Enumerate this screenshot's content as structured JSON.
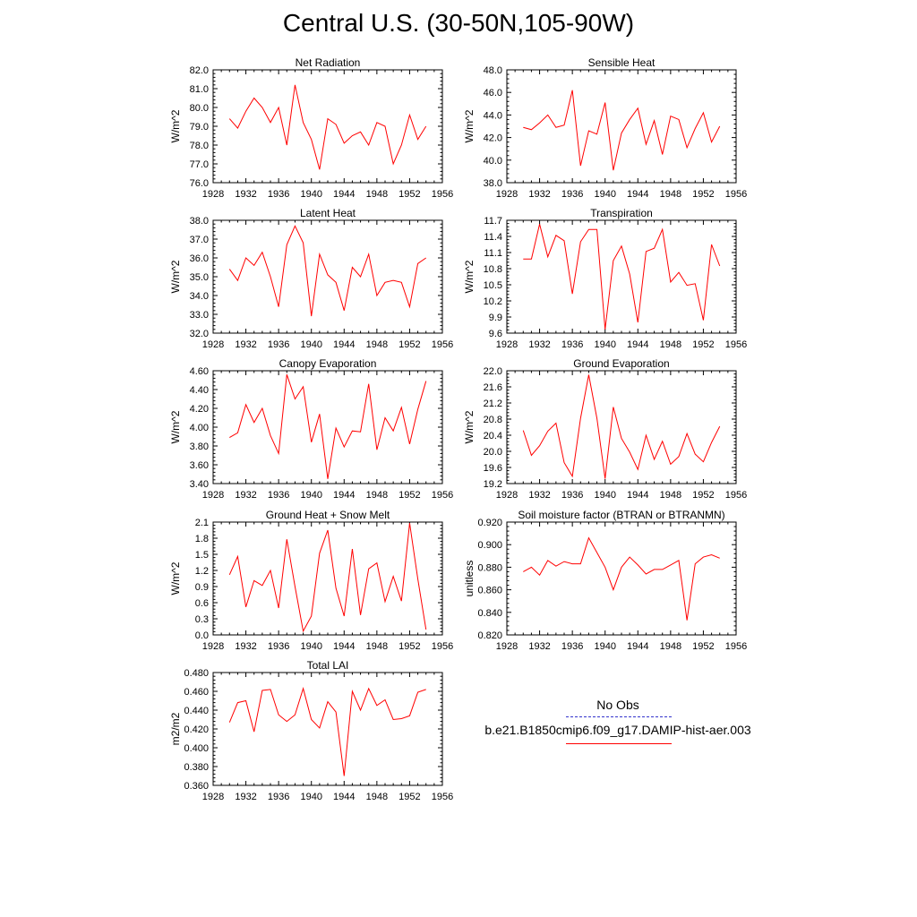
{
  "title": "Central U.S. (30-50N,105-90W)",
  "colors": {
    "model": "#ff0000",
    "obs": "#3333cc",
    "axis": "#000000"
  },
  "legend": {
    "obs_label": "No Obs",
    "model_label": "b.e21.B1850cmip6.f09_g17.DAMIP-hist-aer.003"
  },
  "chart_data": [
    {
      "type": "line",
      "title": "Net Radiation",
      "ylabel": "W/m^2",
      "xlim": [
        1928,
        1956
      ],
      "ylim": [
        76.0,
        82.0
      ],
      "xticks": [
        1928,
        1932,
        1936,
        1940,
        1944,
        1948,
        1952,
        1956
      ],
      "yticks": [
        "76.0",
        "77.0",
        "78.0",
        "79.0",
        "80.0",
        "81.0",
        "82.0"
      ],
      "series": [
        {
          "x": [
            1930,
            1931,
            1932,
            1933,
            1934,
            1935,
            1936,
            1937,
            1938,
            1939,
            1940,
            1941,
            1942,
            1943,
            1944,
            1945,
            1946,
            1947,
            1948,
            1949,
            1950,
            1951,
            1952,
            1953,
            1954
          ],
          "values": [
            79.4,
            78.9,
            79.8,
            80.5,
            80.0,
            79.2,
            80.0,
            78.0,
            81.2,
            79.2,
            78.3,
            76.7,
            79.4,
            79.1,
            78.1,
            78.5,
            78.7,
            78.0,
            79.2,
            79.0,
            77.0,
            78.0,
            79.6,
            78.3,
            79.0
          ]
        }
      ]
    },
    {
      "type": "line",
      "title": "Sensible Heat",
      "ylabel": "W/m^2",
      "xlim": [
        1928,
        1956
      ],
      "ylim": [
        38.0,
        48.0
      ],
      "xticks": [
        1928,
        1932,
        1936,
        1940,
        1944,
        1948,
        1952,
        1956
      ],
      "yticks": [
        "38.0",
        "40.0",
        "42.0",
        "44.0",
        "46.0",
        "48.0"
      ],
      "series": [
        {
          "x": [
            1930,
            1931,
            1932,
            1933,
            1934,
            1935,
            1936,
            1937,
            1938,
            1939,
            1940,
            1941,
            1942,
            1943,
            1944,
            1945,
            1946,
            1947,
            1948,
            1949,
            1950,
            1951,
            1952,
            1953,
            1954
          ],
          "values": [
            42.9,
            42.7,
            43.3,
            44.0,
            42.9,
            43.1,
            46.2,
            39.5,
            42.6,
            42.3,
            45.1,
            39.1,
            42.4,
            43.6,
            44.6,
            41.4,
            43.5,
            40.5,
            43.9,
            43.6,
            41.1,
            42.8,
            44.2,
            41.6,
            43.0
          ]
        }
      ]
    },
    {
      "type": "line",
      "title": "Latent Heat",
      "ylabel": "W/m^2",
      "xlim": [
        1928,
        1956
      ],
      "ylim": [
        32.0,
        38.0
      ],
      "xticks": [
        1928,
        1932,
        1936,
        1940,
        1944,
        1948,
        1952,
        1956
      ],
      "yticks": [
        "32.0",
        "33.0",
        "34.0",
        "35.0",
        "36.0",
        "37.0",
        "38.0"
      ],
      "series": [
        {
          "x": [
            1930,
            1931,
            1932,
            1933,
            1934,
            1935,
            1936,
            1937,
            1938,
            1939,
            1940,
            1941,
            1942,
            1943,
            1944,
            1945,
            1946,
            1947,
            1948,
            1949,
            1950,
            1951,
            1952,
            1953,
            1954
          ],
          "values": [
            35.4,
            34.8,
            36.0,
            35.6,
            36.3,
            35.0,
            33.4,
            36.7,
            37.7,
            36.8,
            32.9,
            36.2,
            35.1,
            34.7,
            33.2,
            35.5,
            35.0,
            36.2,
            34.0,
            34.7,
            34.8,
            34.7,
            33.4,
            35.7,
            36.0
          ]
        }
      ]
    },
    {
      "type": "line",
      "title": "Transpiration",
      "ylabel": "W/m^2",
      "xlim": [
        1928,
        1956
      ],
      "ylim": [
        9.6,
        11.7
      ],
      "xticks": [
        1928,
        1932,
        1936,
        1940,
        1944,
        1948,
        1952,
        1956
      ],
      "yticks": [
        "9.6",
        "9.9",
        "10.2",
        "10.5",
        "10.8",
        "11.1",
        "11.4",
        "11.7"
      ],
      "series": [
        {
          "x": [
            1930,
            1931,
            1932,
            1933,
            1934,
            1935,
            1936,
            1937,
            1938,
            1939,
            1940,
            1941,
            1942,
            1943,
            1944,
            1945,
            1946,
            1947,
            1948,
            1949,
            1950,
            1951,
            1952,
            1953,
            1954
          ],
          "values": [
            10.98,
            10.98,
            11.63,
            11.02,
            11.42,
            11.32,
            10.33,
            11.3,
            11.53,
            11.53,
            9.67,
            10.95,
            11.22,
            10.7,
            9.8,
            11.12,
            11.18,
            11.53,
            10.55,
            10.73,
            10.49,
            10.52,
            9.84,
            11.25,
            10.85
          ]
        }
      ]
    },
    {
      "type": "line",
      "title": "Canopy Evaporation",
      "ylabel": "W/m^2",
      "xlim": [
        1928,
        1956
      ],
      "ylim": [
        3.4,
        4.6
      ],
      "xticks": [
        1928,
        1932,
        1936,
        1940,
        1944,
        1948,
        1952,
        1956
      ],
      "yticks": [
        "3.40",
        "3.60",
        "3.80",
        "4.00",
        "4.20",
        "4.40",
        "4.60"
      ],
      "series": [
        {
          "x": [
            1930,
            1931,
            1932,
            1933,
            1934,
            1935,
            1936,
            1937,
            1938,
            1939,
            1940,
            1941,
            1942,
            1943,
            1944,
            1945,
            1946,
            1947,
            1948,
            1949,
            1950,
            1951,
            1952,
            1953,
            1954
          ],
          "values": [
            3.89,
            3.94,
            4.24,
            4.05,
            4.2,
            3.91,
            3.72,
            4.56,
            4.3,
            4.43,
            3.84,
            4.14,
            3.45,
            3.99,
            3.79,
            3.96,
            3.95,
            4.46,
            3.76,
            4.1,
            3.96,
            4.21,
            3.82,
            4.19,
            4.49
          ]
        }
      ]
    },
    {
      "type": "line",
      "title": "Ground Evaporation",
      "ylabel": "W/m^2",
      "xlim": [
        1928,
        1956
      ],
      "ylim": [
        19.2,
        22.0
      ],
      "xticks": [
        1928,
        1932,
        1936,
        1940,
        1944,
        1948,
        1952,
        1956
      ],
      "yticks": [
        "19.2",
        "19.6",
        "20.0",
        "20.4",
        "20.8",
        "21.2",
        "21.6",
        "22.0"
      ],
      "series": [
        {
          "x": [
            1930,
            1931,
            1932,
            1933,
            1934,
            1935,
            1936,
            1937,
            1938,
            1939,
            1940,
            1941,
            1942,
            1943,
            1944,
            1945,
            1946,
            1947,
            1948,
            1949,
            1950,
            1951,
            1952,
            1953,
            1954
          ],
          "values": [
            20.52,
            19.9,
            20.14,
            20.5,
            20.7,
            19.72,
            19.38,
            20.82,
            21.9,
            20.82,
            19.32,
            21.1,
            20.32,
            19.98,
            19.55,
            20.4,
            19.8,
            20.25,
            19.68,
            19.87,
            20.44,
            19.93,
            19.74,
            20.22,
            20.62
          ]
        }
      ]
    },
    {
      "type": "line",
      "title": "Ground Heat + Snow Melt",
      "ylabel": "W/m^2",
      "xlim": [
        1928,
        1956
      ],
      "ylim": [
        0.0,
        2.1
      ],
      "xticks": [
        1928,
        1932,
        1936,
        1940,
        1944,
        1948,
        1952,
        1956
      ],
      "yticks": [
        "0.0",
        "0.3",
        "0.6",
        "0.9",
        "1.2",
        "1.5",
        "1.8",
        "2.1"
      ],
      "series": [
        {
          "x": [
            1930,
            1931,
            1932,
            1933,
            1934,
            1935,
            1936,
            1937,
            1938,
            1939,
            1940,
            1941,
            1942,
            1943,
            1944,
            1945,
            1946,
            1947,
            1948,
            1949,
            1950,
            1951,
            1952,
            1953,
            1954
          ],
          "values": [
            1.12,
            1.46,
            0.52,
            1.01,
            0.92,
            1.2,
            0.5,
            1.78,
            0.9,
            0.07,
            0.35,
            1.52,
            1.95,
            0.87,
            0.35,
            1.6,
            0.37,
            1.23,
            1.34,
            0.62,
            1.09,
            0.63,
            2.08,
            1.04,
            0.1
          ]
        }
      ]
    },
    {
      "type": "line",
      "title": "Soil moisture factor (BTRAN or BTRANMN)",
      "ylabel": "unitless",
      "xlim": [
        1928,
        1956
      ],
      "ylim": [
        0.82,
        0.92
      ],
      "xticks": [
        1928,
        1932,
        1936,
        1940,
        1944,
        1948,
        1952,
        1956
      ],
      "yticks": [
        "0.820",
        "0.840",
        "0.860",
        "0.880",
        "0.900",
        "0.920"
      ],
      "series": [
        {
          "x": [
            1930,
            1931,
            1932,
            1933,
            1934,
            1935,
            1936,
            1937,
            1938,
            1939,
            1940,
            1941,
            1942,
            1943,
            1944,
            1945,
            1946,
            1947,
            1948,
            1949,
            1950,
            1951,
            1952,
            1953,
            1954
          ],
          "values": [
            0.876,
            0.88,
            0.873,
            0.886,
            0.881,
            0.885,
            0.883,
            0.883,
            0.906,
            0.893,
            0.88,
            0.86,
            0.88,
            0.889,
            0.882,
            0.874,
            0.878,
            0.878,
            0.882,
            0.886,
            0.833,
            0.883,
            0.889,
            0.891,
            0.888
          ]
        }
      ]
    },
    {
      "type": "line",
      "title": "Total LAI",
      "ylabel": "m2/m2",
      "xlim": [
        1928,
        1956
      ],
      "ylim": [
        0.36,
        0.48
      ],
      "xticks": [
        1928,
        1932,
        1936,
        1940,
        1944,
        1948,
        1952,
        1956
      ],
      "yticks": [
        "0.360",
        "0.380",
        "0.400",
        "0.420",
        "0.440",
        "0.460",
        "0.480"
      ],
      "series": [
        {
          "x": [
            1930,
            1931,
            1932,
            1933,
            1934,
            1935,
            1936,
            1937,
            1938,
            1939,
            1940,
            1941,
            1942,
            1943,
            1944,
            1945,
            1946,
            1947,
            1948,
            1949,
            1950,
            1951,
            1952,
            1953,
            1954
          ],
          "values": [
            0.427,
            0.448,
            0.45,
            0.417,
            0.461,
            0.462,
            0.435,
            0.428,
            0.435,
            0.463,
            0.43,
            0.421,
            0.449,
            0.438,
            0.37,
            0.46,
            0.44,
            0.463,
            0.445,
            0.451,
            0.43,
            0.431,
            0.434,
            0.459,
            0.462
          ]
        }
      ]
    }
  ]
}
